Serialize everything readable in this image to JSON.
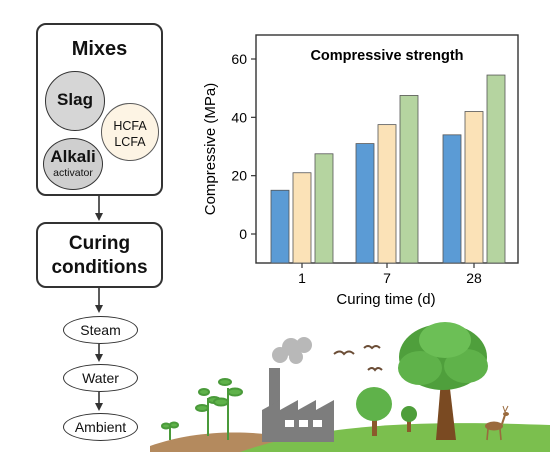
{
  "mixes": {
    "title": "Mixes",
    "slag": "Slag",
    "fly_ash_line1": "HCFA",
    "fly_ash_line2": "LCFA",
    "alkali_line1": "Alkali",
    "alkali_line2": "activator"
  },
  "curing": {
    "line1": "Curing",
    "line2": "conditions",
    "options": [
      "Steam",
      "Water",
      "Ambient"
    ]
  },
  "colors": {
    "series_blue": "#5b9bd5",
    "series_peach": "#fbe2b7",
    "series_green": "#b5d4a0"
  },
  "chart_data": {
    "type": "bar",
    "title": "Compressive strength",
    "xlabel": "Curing time (d)",
    "ylabel": "Compressive (MPa)",
    "categories": [
      "1",
      "7",
      "28"
    ],
    "ylim": [
      -10,
      65
    ],
    "yticks": [
      0,
      20,
      40,
      60
    ],
    "series": [
      {
        "values": [
          15,
          31,
          34
        ],
        "color": "#5b9bd5"
      },
      {
        "values": [
          21,
          37.5,
          42
        ],
        "color": "#fbe2b7"
      },
      {
        "values": [
          27.5,
          47.5,
          54.5
        ],
        "color": "#b5d4a0"
      }
    ],
    "grid": false
  },
  "illustration": {
    "icons": [
      "factory-icon",
      "smoke-icon",
      "tree-icon",
      "deer-icon",
      "bird-icon",
      "seedling-icon"
    ]
  }
}
